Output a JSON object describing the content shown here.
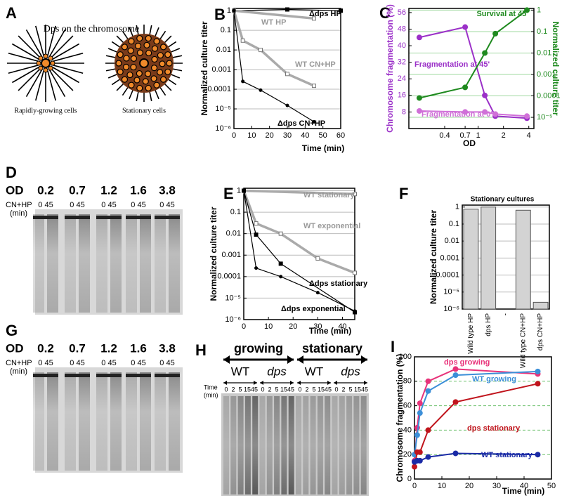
{
  "panel_a": {
    "label": "A",
    "title": "Dps on the chromosome",
    "captions": [
      "Rapidly-growing cells",
      "Stationary cells"
    ]
  },
  "panel_d": {
    "label": "D",
    "od_label": "OD",
    "treatment": "CN+HP",
    "unit": "(min)",
    "lanes": [
      {
        "od": "0.2",
        "times": "0 45"
      },
      {
        "od": "0.7",
        "times": "0 45"
      },
      {
        "od": "1.2",
        "times": "0 45"
      },
      {
        "od": "1.6",
        "times": "0 45"
      },
      {
        "od": "3.8",
        "times": "0 45"
      }
    ]
  },
  "panel_g": {
    "label": "G",
    "od_label": "OD",
    "treatment": "CN+HP",
    "unit": "(min)",
    "lanes": [
      {
        "od": "0.2",
        "times": "0 45"
      },
      {
        "od": "0.7",
        "times": "0 45"
      },
      {
        "od": "1.2",
        "times": "0 45"
      },
      {
        "od": "1.6",
        "times": "0 45"
      },
      {
        "od": "3.8",
        "times": "0 45"
      }
    ]
  },
  "panel_h": {
    "label": "H",
    "groups": [
      {
        "name": "growing",
        "strains": [
          "WT",
          "dps"
        ]
      },
      {
        "name": "stationary",
        "strains": [
          "WT",
          "dps"
        ]
      }
    ],
    "time_label": "Time",
    "unit": "(min)",
    "times": [
      "0",
      "2",
      "5",
      "15",
      "45"
    ]
  },
  "chart_data": [
    {
      "label": "B",
      "type": "line",
      "x_label": "Time (min)",
      "y_label": "Normalized culture titer",
      "xlim": [
        0,
        60
      ],
      "xticks": [
        0,
        10,
        20,
        30,
        40,
        50,
        60
      ],
      "ylim": [
        1e-06,
        1.3
      ],
      "yscale": "log",
      "yticks": [
        1,
        0.1,
        0.01,
        0.001,
        0.0001,
        {
          "value": 1e-05,
          "label": "10⁻⁵"
        },
        {
          "value": 1e-06,
          "label": "10⁻⁶"
        }
      ],
      "grid": true,
      "grid_color": "#bbbbbb",
      "series": [
        {
          "name": "Δdps HP",
          "color": "#000000",
          "marker": "square",
          "x": [
            0,
            30,
            60
          ],
          "values": [
            1,
            1.15,
            1
          ]
        },
        {
          "name": "WT HP",
          "color": "#aaaaaa",
          "marker": "square",
          "x": [
            0,
            45
          ],
          "values": [
            1,
            0.4
          ]
        },
        {
          "name": "WT CN+HP",
          "color": "#aaaaaa",
          "marker": "square",
          "x": [
            0,
            5,
            15,
            30,
            45
          ],
          "values": [
            1,
            0.03,
            0.01,
            0.0006,
            0.00015
          ]
        },
        {
          "name": "Δdps CN+HP",
          "color": "#000000",
          "marker": "circle",
          "x": [
            0,
            5,
            15,
            30,
            45
          ],
          "values": [
            1,
            0.00025,
            9e-05,
            1.5e-05,
            2.2e-06
          ]
        }
      ]
    },
    {
      "label": "C",
      "type": "line",
      "x_label": "OD",
      "y_label": "Chromosome fragmentation (%)",
      "y2_label": "Normalized culture titer",
      "xscale": "log",
      "xlim": [
        0.15,
        4.6
      ],
      "xticks": [
        0.4,
        0.7,
        1,
        2,
        4
      ],
      "x": [
        0.2,
        0.7,
        1.2,
        1.6,
        3.8
      ],
      "ylim": [
        0,
        58
      ],
      "yticks": [
        8,
        16,
        24,
        32,
        40,
        48,
        56
      ],
      "y_color": "#9b30c8",
      "y2scale": "log",
      "y2lim": [
        3e-06,
        1.2
      ],
      "y2ticks": [
        1,
        0.1,
        0.01,
        0.001,
        0.0001,
        {
          "value": 1e-05,
          "label": "10⁻⁵"
        }
      ],
      "y2_color": "#1f8a1f",
      "grid": true,
      "grid_axis": "y2",
      "grid_color": "#9fd89f",
      "series": [
        {
          "name": "Fragmentation at 45'",
          "color": "#9b30c8",
          "marker": "circle",
          "values": [
            44,
            49,
            16,
            6,
            5
          ]
        },
        {
          "name": "Survival at 45'",
          "color": "#1f8a1f",
          "marker": "circle",
          "axis": "y2",
          "values": [
            8e-05,
            0.00025,
            0.01,
            0.08,
            1
          ]
        },
        {
          "name": "Fragmentation at 0'",
          "color": "#d070d8",
          "marker": "circle",
          "values": [
            8.5,
            8,
            8,
            7,
            6
          ]
        }
      ]
    },
    {
      "label": "E",
      "type": "line",
      "x_label": "Time (min)",
      "y_label": "Normalized culture titer",
      "xlim": [
        0,
        45
      ],
      "xticks": [
        0,
        10,
        20,
        30,
        40
      ],
      "ylim": [
        1e-06,
        1.3
      ],
      "yscale": "log",
      "yticks": [
        1,
        0.1,
        0.01,
        0.001,
        0.0001,
        {
          "value": 1e-05,
          "label": "10⁻⁵"
        },
        {
          "value": 1e-06,
          "label": "10⁻⁶"
        }
      ],
      "grid": true,
      "grid_color": "#bbbbbb",
      "series": [
        {
          "name": "WT stationary",
          "color": "#aaaaaa",
          "marker": "square",
          "x": [
            0,
            45
          ],
          "values": [
            1,
            0.7
          ]
        },
        {
          "name": "WT exponential",
          "color": "#aaaaaa",
          "marker": "square",
          "x": [
            0,
            5,
            15,
            30,
            45
          ],
          "values": [
            1,
            0.03,
            0.01,
            0.0007,
            0.00015
          ]
        },
        {
          "name": "Δdps stationary",
          "color": "#000000",
          "marker": "square",
          "x": [
            0,
            5,
            15,
            45
          ],
          "values": [
            1,
            0.009,
            0.0004,
            2.2e-06
          ]
        },
        {
          "name": "Δdps exponential",
          "color": "#000000",
          "marker": "circle",
          "x": [
            0,
            5,
            15,
            30,
            45
          ],
          "values": [
            1,
            0.00025,
            0.0001,
            1.8e-05,
            2.5e-06
          ]
        }
      ]
    },
    {
      "label": "F",
      "type": "bar",
      "title": "Stationary cultures",
      "y_label": "Normalized culture titer",
      "categories": [
        "Wild type HP",
        "dps HP",
        "-",
        "Wild type CN+HP",
        "dps CN+HP"
      ],
      "values": [
        0.75,
        1,
        null,
        0.65,
        2.5e-06
      ],
      "color": "#d3d3d3",
      "ylim": [
        1e-06,
        1.3
      ],
      "yscale": "log",
      "yticks": [
        1,
        0.1,
        0.01,
        0.001,
        0.0001,
        {
          "value": 1e-05,
          "label": "10⁻⁵"
        },
        {
          "value": 1e-06,
          "label": "10⁻⁶"
        }
      ],
      "grid": true,
      "grid_color": "#bbbbbb"
    },
    {
      "label": "I",
      "type": "line",
      "x_label": "Time (min)",
      "y_label": "Chromosome fragmentation (%)",
      "xlim": [
        0,
        50
      ],
      "xticks": [
        0,
        10,
        20,
        30,
        40,
        50
      ],
      "x": [
        0,
        1,
        2,
        5,
        15,
        45
      ],
      "ylim": [
        0,
        100
      ],
      "yticks": [
        0,
        20,
        40,
        60,
        80,
        100
      ],
      "grid": true,
      "grid_color": "#6cc06c",
      "grid_dash": true,
      "series": [
        {
          "name": "dps growing",
          "color": "#e8337a",
          "marker": "circle",
          "values": [
            15,
            42,
            62,
            80,
            90,
            86
          ]
        },
        {
          "name": "WT growing",
          "color": "#3c8fd8",
          "marker": "circle",
          "values": [
            20,
            36,
            54,
            72,
            85,
            88
          ]
        },
        {
          "name": "dps stationary",
          "color": "#c0141c",
          "marker": "circle",
          "values": [
            10,
            22,
            22,
            40,
            63,
            78
          ]
        },
        {
          "name": "WT stationary",
          "color": "#1a2aa6",
          "marker": "circle",
          "values": [
            14,
            15,
            15,
            18,
            21,
            20
          ]
        }
      ]
    }
  ]
}
